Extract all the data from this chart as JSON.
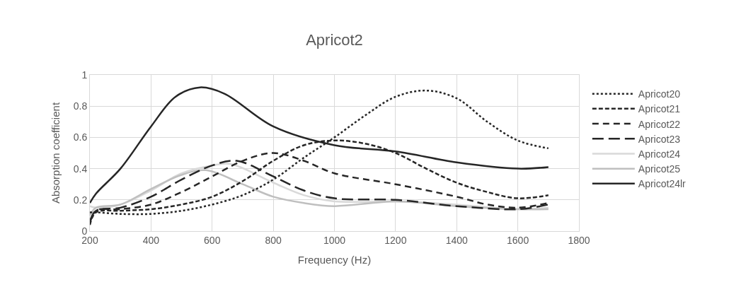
{
  "chart_data": {
    "type": "line",
    "title": "Apricot2",
    "xlabel": "Frequency (Hz)",
    "ylabel": "Absorption coefficient",
    "xlim": [
      200,
      1800
    ],
    "xticks": [
      200,
      400,
      600,
      800,
      1000,
      1200,
      1400,
      1600,
      1800
    ],
    "ylim": [
      0,
      1
    ],
    "yticks": [
      0,
      0.2,
      0.4,
      0.6,
      0.8,
      1
    ],
    "grid": true,
    "legend": "right",
    "marker": "none",
    "series": [
      {
        "name": "Apricot20",
        "color": "#262626",
        "line_style": "dotted",
        "x": [
          200,
          220,
          300,
          400,
          500,
          600,
          700,
          800,
          900,
          1000,
          1100,
          1200,
          1300,
          1400,
          1500,
          1600,
          1700
        ],
        "values": [
          0.12,
          0.12,
          0.11,
          0.11,
          0.13,
          0.17,
          0.23,
          0.33,
          0.47,
          0.6,
          0.74,
          0.86,
          0.9,
          0.85,
          0.7,
          0.58,
          0.53
        ]
      },
      {
        "name": "Apricot21",
        "color": "#262626",
        "line_style": "dashed",
        "x": [
          200,
          220,
          300,
          400,
          500,
          600,
          700,
          800,
          900,
          1000,
          1100,
          1200,
          1300,
          1400,
          1500,
          1600,
          1700
        ],
        "values": [
          0.04,
          0.12,
          0.13,
          0.14,
          0.17,
          0.22,
          0.32,
          0.45,
          0.55,
          0.58,
          0.56,
          0.5,
          0.4,
          0.31,
          0.25,
          0.21,
          0.23
        ]
      },
      {
        "name": "Apricot22",
        "color": "#262626",
        "line_style": "dashed",
        "x": [
          200,
          220,
          300,
          400,
          500,
          600,
          700,
          800,
          900,
          1000,
          1200,
          1400,
          1500,
          1600,
          1700
        ],
        "values": [
          0.05,
          0.13,
          0.14,
          0.17,
          0.25,
          0.35,
          0.45,
          0.5,
          0.45,
          0.37,
          0.3,
          0.22,
          0.17,
          0.15,
          0.18
        ]
      },
      {
        "name": "Apricot23",
        "color": "#262626",
        "line_style": "dashed",
        "x": [
          200,
          220,
          300,
          400,
          500,
          600,
          680,
          800,
          900,
          1000,
          1200,
          1400,
          1600,
          1700
        ],
        "values": [
          0.06,
          0.13,
          0.15,
          0.22,
          0.33,
          0.42,
          0.45,
          0.35,
          0.26,
          0.21,
          0.2,
          0.16,
          0.14,
          0.17
        ]
      },
      {
        "name": "Apricot24",
        "color": "#d9d9d9",
        "line_style": "solid",
        "x": [
          200,
          220,
          300,
          400,
          500,
          600,
          660,
          800,
          900,
          1000,
          1200,
          1400,
          1600,
          1700
        ],
        "values": [
          0.16,
          0.15,
          0.17,
          0.26,
          0.37,
          0.42,
          0.43,
          0.31,
          0.23,
          0.19,
          0.19,
          0.17,
          0.14,
          0.15
        ]
      },
      {
        "name": "Apricot25",
        "color": "#bfbfbf",
        "line_style": "solid",
        "x": [
          200,
          220,
          300,
          400,
          500,
          580,
          700,
          800,
          900,
          1000,
          1200,
          1400,
          1600,
          1700
        ],
        "values": [
          0.1,
          0.15,
          0.17,
          0.27,
          0.36,
          0.39,
          0.3,
          0.22,
          0.18,
          0.16,
          0.19,
          0.16,
          0.14,
          0.14
        ]
      },
      {
        "name": "Apricot24lr",
        "color": "#262626",
        "line_style": "solid",
        "x": [
          200,
          220,
          300,
          400,
          480,
          560,
          640,
          800,
          1000,
          1200,
          1400,
          1600,
          1700
        ],
        "values": [
          0.18,
          0.24,
          0.4,
          0.67,
          0.86,
          0.92,
          0.88,
          0.67,
          0.55,
          0.51,
          0.44,
          0.4,
          0.41
        ]
      }
    ]
  }
}
